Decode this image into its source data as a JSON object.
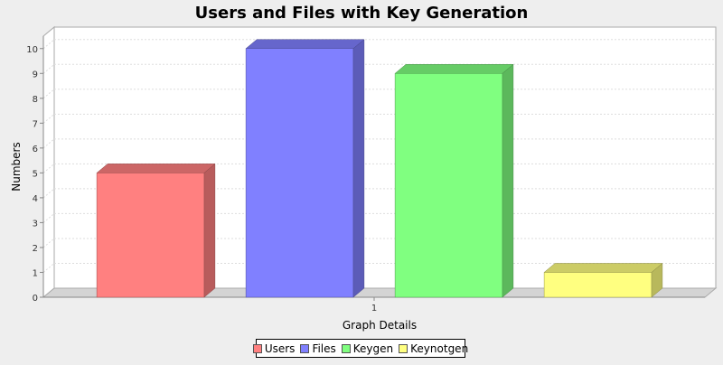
{
  "chart_data": {
    "type": "bar",
    "title": "Users and Files with Key Generation",
    "xlabel": "Graph Details",
    "ylabel": "Numbers",
    "categories": [
      "1"
    ],
    "series": [
      {
        "name": "Users",
        "values": [
          5
        ],
        "color": "#ff8080"
      },
      {
        "name": "Files",
        "values": [
          10
        ],
        "color": "#8080ff"
      },
      {
        "name": "Keygen",
        "values": [
          9
        ],
        "color": "#80ff80"
      },
      {
        "name": "Keynotgen",
        "values": [
          1
        ],
        "color": "#ffff80"
      }
    ],
    "ylim": [
      0,
      10.5
    ],
    "yticks": [
      "0",
      "1",
      "2",
      "3",
      "4",
      "5",
      "6",
      "7",
      "8",
      "9",
      "10"
    ],
    "grid": true,
    "legend_position": "bottom",
    "style": "3d"
  }
}
